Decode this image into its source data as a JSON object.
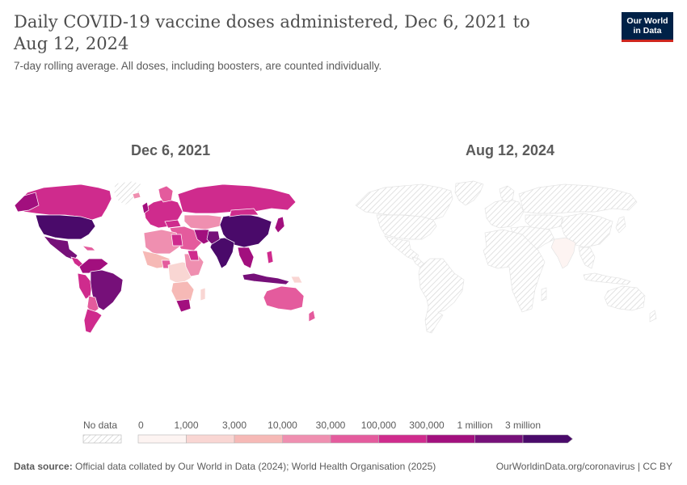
{
  "title": "Daily COVID-19 vaccine doses administered, Dec 6, 2021 to Aug 12, 2024",
  "subtitle": "7-day rolling average. All doses, including boosters, are counted individually.",
  "logo": {
    "line1": "Our World",
    "line2": "in Data"
  },
  "maps": [
    {
      "date_label": "Dec 6, 2021"
    },
    {
      "date_label": "Aug 12, 2024"
    }
  ],
  "legend": {
    "no_data_label": "No data",
    "bins": [
      {
        "label": "0",
        "color": "#fdf4f2"
      },
      {
        "label": "1,000",
        "color": "#f9d6d3"
      },
      {
        "label": "3,000",
        "color": "#f6b9b6"
      },
      {
        "label": "10,000",
        "color": "#ef8fb0"
      },
      {
        "label": "30,000",
        "color": "#e45b9d"
      },
      {
        "label": "100,000",
        "color": "#cf2b8d"
      },
      {
        "label": "300,000",
        "color": "#a20f7e"
      },
      {
        "label": "1 million",
        "color": "#761079"
      },
      {
        "label": "3 million",
        "color": "#4a0a6a"
      }
    ]
  },
  "footer": {
    "source_label": "Data source:",
    "source_text": "Official data collated by Our World in Data (2024); World Health Organisation (2025)",
    "url_text": "OurWorldinData.org/coronavirus | CC BY"
  },
  "colors": {
    "no_data_hatch": "#d0d0d0",
    "border": "#ffffff",
    "logo_bg": "#002147",
    "logo_accent": "#ce261e"
  }
}
